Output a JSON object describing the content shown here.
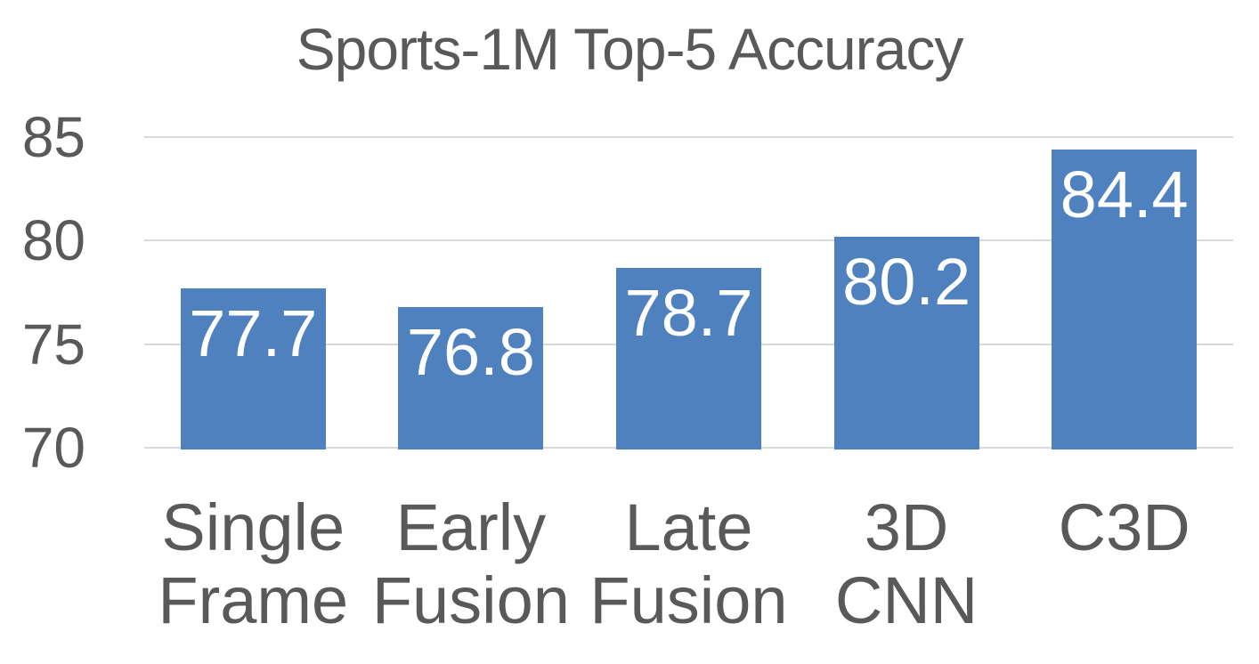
{
  "chart_data": {
    "type": "bar",
    "title": "Sports-1M Top-5 Accuracy",
    "categories": [
      "Single Frame",
      "Early Fusion",
      "Late Fusion",
      "3D CNN",
      "C3D"
    ],
    "category_lines": [
      [
        "Single",
        "Frame"
      ],
      [
        "Early",
        "Fusion"
      ],
      [
        "Late",
        "Fusion"
      ],
      [
        "3D",
        "CNN"
      ],
      [
        "C3D"
      ]
    ],
    "values": [
      77.7,
      76.8,
      78.7,
      80.2,
      84.4
    ],
    "value_labels": [
      "77.7",
      "76.8",
      "78.7",
      "80.2",
      "84.4"
    ],
    "xlabel": "",
    "ylabel": "",
    "ylim": [
      70,
      85
    ],
    "yticks": [
      85,
      80,
      75,
      70
    ],
    "grid": true,
    "legend": "none",
    "colors": {
      "bar": "#4E81BD",
      "text": "#595959",
      "gridline": "#D9D9D9",
      "value_label": "#FFFFFF",
      "background": "#FFFFFF"
    }
  }
}
